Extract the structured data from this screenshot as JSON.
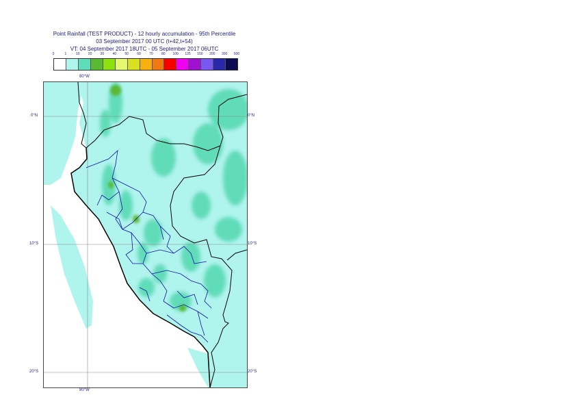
{
  "header": {
    "line1": "Point Rainfall (TEST PRODUCT) - 12 hourly accumulation - 95th Percentile",
    "line2": "03 September 2017 00 UTC (t+42,t+54)",
    "line3": "VT: 04 September 2017 18UTC - 05 September 2017 06UTC"
  },
  "legend": {
    "thresholds": [
      "0",
      "1",
      "10",
      "20",
      "30",
      "40",
      "50",
      "60",
      "70",
      "80",
      "100",
      "125",
      "150",
      "200",
      "300",
      "500"
    ],
    "colors": [
      "#ffffff",
      "#b0f4ee",
      "#60dcb8",
      "#5ab832",
      "#8ee010",
      "#e4f870",
      "#d8e020",
      "#f8b010",
      "#f07810",
      "#f80000",
      "#f000f0",
      "#a010d0",
      "#7858f0",
      "#2828a8",
      "#0c0c50"
    ]
  },
  "map": {
    "grid_color": "#888888",
    "border_color": "#000000",
    "admin_color": "#1010aa",
    "lon_labels": {
      "top": "80°W",
      "bottom": "80°W"
    },
    "lat_labels": [
      "0°N",
      "10°S",
      "20°S"
    ]
  }
}
